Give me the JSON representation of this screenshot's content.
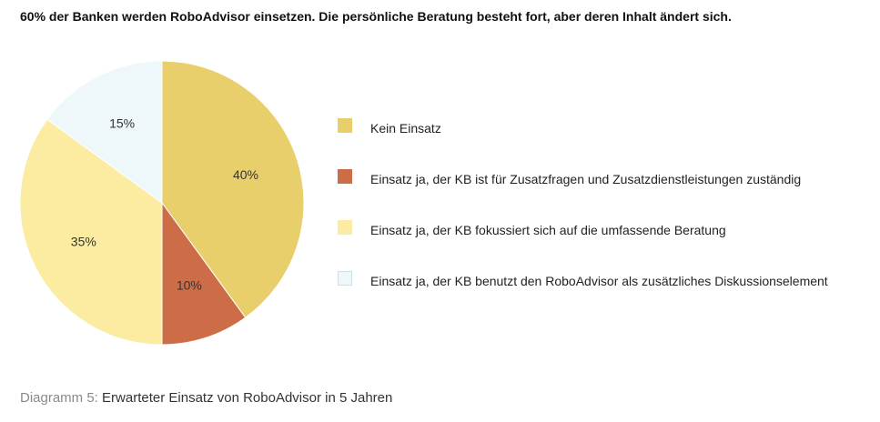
{
  "headline": "60% der Banken werden RoboAdvisor einsetzen. Die persönliche Beratung besteht fort, aber deren Inhalt ändert sich.",
  "caption": {
    "prefix": "Diagramm 5:",
    "text": "Erwarteter Einsatz von RoboAdvisor in 5 Jahren"
  },
  "colors": {
    "slice_border": "#ffffff",
    "swatch_border": "#cfe0e6"
  },
  "chart_data": {
    "type": "pie",
    "unit": "%",
    "slices": [
      {
        "label": "Kein Einsatz",
        "value": 40,
        "display": "40%",
        "color": "#e9cf6c"
      },
      {
        "label": "Einsatz ja, der KB ist für Zusatzfragen und Zusatzdienstleistungen zuständig",
        "value": 10,
        "display": "10%",
        "color": "#cd6d48"
      },
      {
        "label": "Einsatz ja, der KB fokussiert sich auf die umfassende Beratung",
        "value": 35,
        "display": "35%",
        "color": "#fbeca2"
      },
      {
        "label": "Einsatz ja, der KB benutzt den RoboAdvisor als zusätzliches Diskussionselement",
        "value": 15,
        "display": "15%",
        "color": "#eef8fb"
      }
    ],
    "start_angle": "12 o'clock",
    "direction": "clockwise",
    "legend_position": "right"
  }
}
